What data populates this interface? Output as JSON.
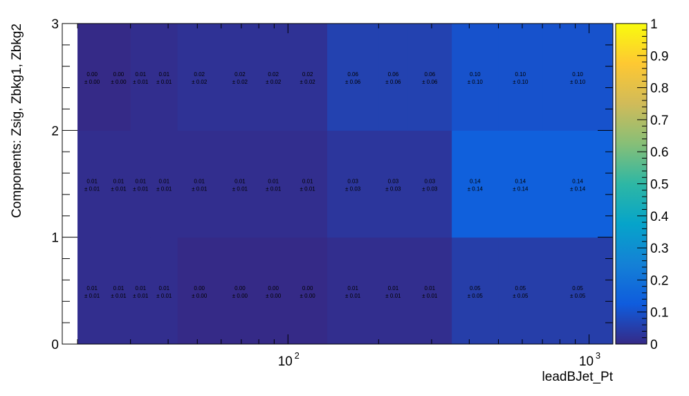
{
  "chart_data": {
    "type": "heatmap",
    "xlabel": "leadBJet_Pt",
    "ylabel": "Components: Zsig, Zbkg1, Zbkg2",
    "x_scale": "log",
    "x_bin_edges": [
      20,
      25,
      30,
      35,
      43,
      60,
      80,
      100,
      135,
      200,
      250,
      350,
      500,
      700,
      1200
    ],
    "x_ticks": [
      {
        "value": 100,
        "label": "10",
        "exp": "2"
      },
      {
        "value": 1000,
        "label": "10",
        "exp": "3"
      }
    ],
    "y_bins": [
      0,
      1,
      2,
      3
    ],
    "y_ticks": [
      "0",
      "1",
      "2",
      "3"
    ],
    "zlim": [
      0,
      1
    ],
    "colorbar_ticks": [
      "0",
      "0.1",
      "0.2",
      "0.3",
      "0.4",
      "0.5",
      "0.6",
      "0.7",
      "0.8",
      "0.9",
      "1"
    ],
    "colormap": [
      "#352a87",
      "#0f5cdd",
      "#1481d6",
      "#06a4ca",
      "#2eb7a4",
      "#87bf77",
      "#d1bb59",
      "#fec832",
      "#f9fb0e"
    ],
    "rows": [
      {
        "values": [
          0.01,
          0.01,
          0.01,
          0.01,
          0.0,
          0.0,
          0.0,
          0.0,
          0.01,
          0.01,
          0.01,
          0.05,
          0.05,
          0.05
        ],
        "labels": [
          "0.01",
          "0.01",
          "0.01",
          "0.01",
          "0.00",
          "0.00",
          "0.00",
          "0.00",
          "0.01",
          "0.01",
          "0.01",
          "0.05",
          "0.05",
          "0.05"
        ],
        "errors": [
          "± 0.01",
          "± 0.01",
          "± 0.01",
          "± 0.01",
          "± 0.00",
          "± 0.00",
          "± 0.00",
          "± 0.00",
          "± 0.01",
          "± 0.01",
          "± 0.01",
          "± 0.05",
          "± 0.05",
          "± 0.05"
        ]
      },
      {
        "values": [
          0.01,
          0.01,
          0.01,
          0.01,
          0.01,
          0.01,
          0.01,
          0.01,
          0.03,
          0.03,
          0.03,
          0.14,
          0.14,
          0.14
        ],
        "labels": [
          "0.01",
          "0.01",
          "0.01",
          "0.01",
          "0.01",
          "0.01",
          "0.01",
          "0.01",
          "0.03",
          "0.03",
          "0.03",
          "0.14",
          "0.14",
          "0.14"
        ],
        "errors": [
          "± 0.01",
          "± 0.01",
          "± 0.01",
          "± 0.01",
          "± 0.01",
          "± 0.01",
          "± 0.01",
          "± 0.01",
          "± 0.03",
          "± 0.03",
          "± 0.03",
          "± 0.14",
          "± 0.14",
          "± 0.14"
        ]
      },
      {
        "values": [
          0.0,
          0.0,
          0.01,
          0.01,
          0.02,
          0.02,
          0.02,
          0.02,
          0.06,
          0.06,
          0.06,
          0.1,
          0.1,
          0.1
        ],
        "labels": [
          "0.00",
          "0.00",
          "0.01",
          "0.01",
          "0.02",
          "0.02",
          "0.02",
          "0.02",
          "0.06",
          "0.06",
          "0.06",
          "0.10",
          "0.10",
          "0.10"
        ],
        "errors": [
          "± 0.00",
          "± 0.00",
          "± 0.01",
          "± 0.01",
          "± 0.02",
          "± 0.02",
          "± 0.02",
          "± 0.02",
          "± 0.06",
          "± 0.06",
          "± 0.06",
          "± 0.10",
          "± 0.10",
          "± 0.10"
        ]
      }
    ]
  }
}
